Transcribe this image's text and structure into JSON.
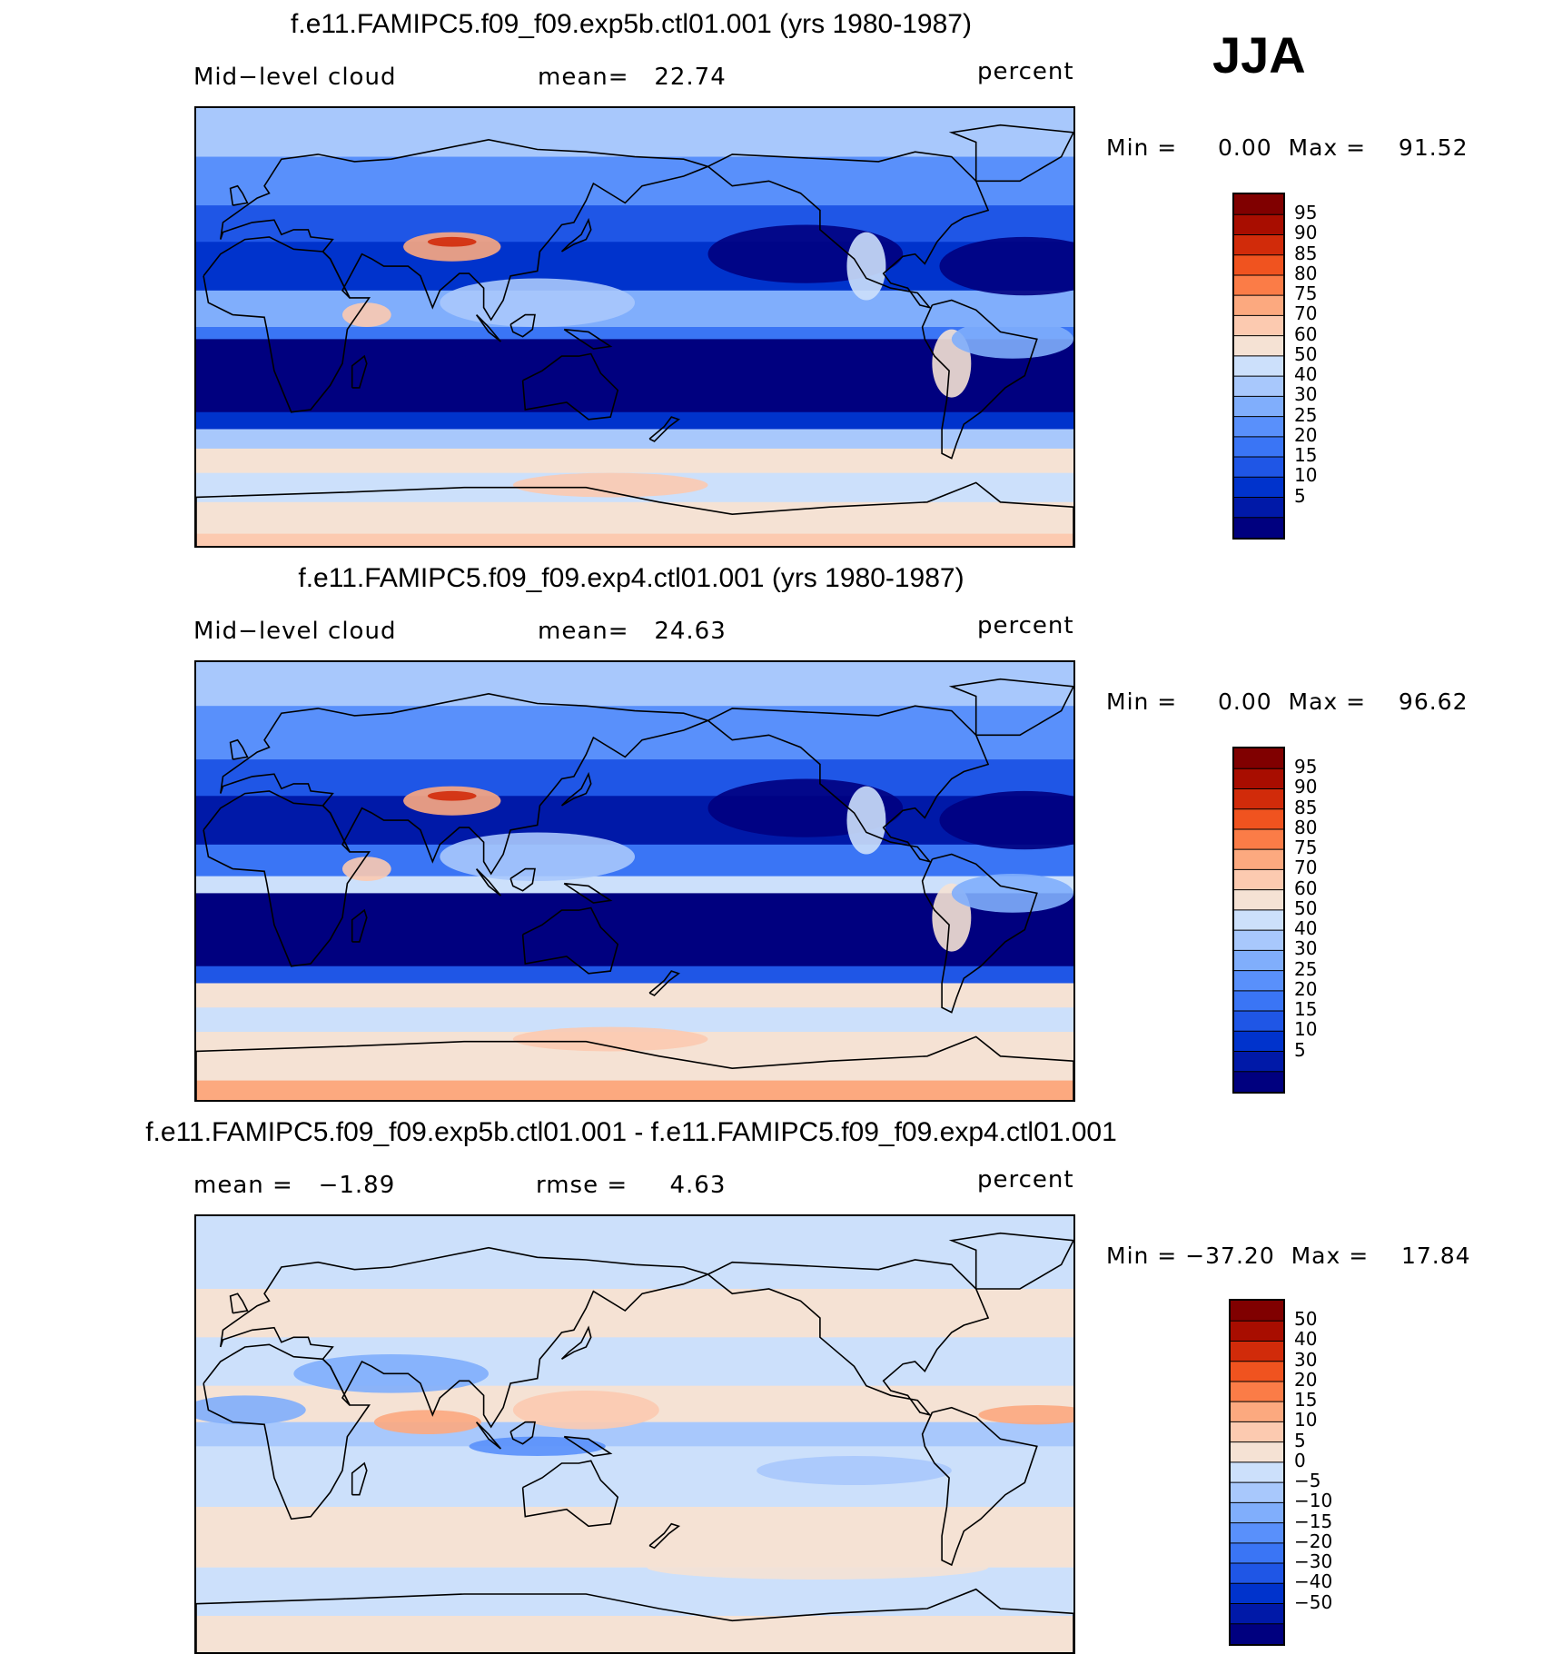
{
  "season": "JJA",
  "colors": {
    "abs_scale": [
      "#00007f",
      "#0019a8",
      "#0033cc",
      "#1f56e6",
      "#3a75f5",
      "#5990fb",
      "#80aefc",
      "#a8c8fc",
      "#cce0fb",
      "#f5e2d4",
      "#fccab0",
      "#fca97f",
      "#fb7c47",
      "#f0531f",
      "#d12b0a",
      "#a80d00",
      "#800000"
    ],
    "diff_scale": [
      "#00007f",
      "#0019a8",
      "#0033cc",
      "#1f56e6",
      "#3a75f5",
      "#5990fb",
      "#80aefc",
      "#a8c8fc",
      "#cce0fb",
      "#f5e2d4",
      "#fccab0",
      "#fca97f",
      "#fb7c47",
      "#f0531f",
      "#d12b0a",
      "#a80d00",
      "#800000"
    ]
  },
  "panels": [
    {
      "title": "f.e11.FAMIPC5.f09_f09.exp5b.ctl01.001 (yrs 1980-1987)",
      "field": "Mid−level cloud",
      "stat": "mean=   22.74",
      "units": "percent",
      "minmax": "Min =     0.00  Max =    91.52",
      "kind": "abs"
    },
    {
      "title": "f.e11.FAMIPC5.f09_f09.exp4.ctl01.001 (yrs 1980-1987)",
      "field": "Mid−level cloud",
      "stat": "mean=   24.63",
      "units": "percent",
      "minmax": "Min =     0.00  Max =    96.62",
      "kind": "abs"
    },
    {
      "title": "f.e11.FAMIPC5.f09_f09.exp5b.ctl01.001 - f.e11.FAMIPC5.f09_f09.exp4.ctl01.001",
      "field": "mean =   −1.89",
      "stat": "rmse =     4.63",
      "units": "percent",
      "minmax": "Min = −37.20  Max =    17.84",
      "kind": "diff"
    }
  ],
  "chart_data": [
    {
      "type": "heatmap",
      "title": "f.e11.FAMIPC5.f09_f09.exp5b.ctl01.001 (yrs 1980-1987)",
      "variable": "Mid−level cloud",
      "units": "percent",
      "mean": 22.74,
      "min": 0.0,
      "max": 91.52,
      "levels": [
        5,
        10,
        15,
        20,
        25,
        30,
        40,
        50,
        60,
        70,
        75,
        80,
        85,
        90,
        95
      ],
      "level_labels": [
        "95",
        "90",
        "85",
        "80",
        "75",
        "70",
        "60",
        "50",
        "40",
        "30",
        "25",
        "20",
        "15",
        "10",
        "5"
      ]
    },
    {
      "type": "heatmap",
      "title": "f.e11.FAMIPC5.f09_f09.exp4.ctl01.001 (yrs 1980-1987)",
      "variable": "Mid−level cloud",
      "units": "percent",
      "mean": 24.63,
      "min": 0.0,
      "max": 96.62,
      "levels": [
        5,
        10,
        15,
        20,
        25,
        30,
        40,
        50,
        60,
        70,
        75,
        80,
        85,
        90,
        95
      ],
      "level_labels": [
        "95",
        "90",
        "85",
        "80",
        "75",
        "70",
        "60",
        "50",
        "40",
        "30",
        "25",
        "20",
        "15",
        "10",
        "5"
      ]
    },
    {
      "type": "heatmap",
      "title": "f.e11.FAMIPC5.f09_f09.exp5b.ctl01.001 - f.e11.FAMIPC5.f09_f09.exp4.ctl01.001",
      "units": "percent",
      "mean": -1.89,
      "rmse": 4.63,
      "min": -37.2,
      "max": 17.84,
      "levels": [
        -50,
        -40,
        -30,
        -20,
        -15,
        -10,
        -5,
        0,
        5,
        10,
        15,
        20,
        30,
        40,
        50
      ],
      "level_labels": [
        "50",
        "40",
        "30",
        "20",
        "15",
        "10",
        "5",
        "0",
        "−5",
        "−10",
        "−15",
        "−20",
        "−30",
        "−40",
        "−50"
      ]
    }
  ]
}
